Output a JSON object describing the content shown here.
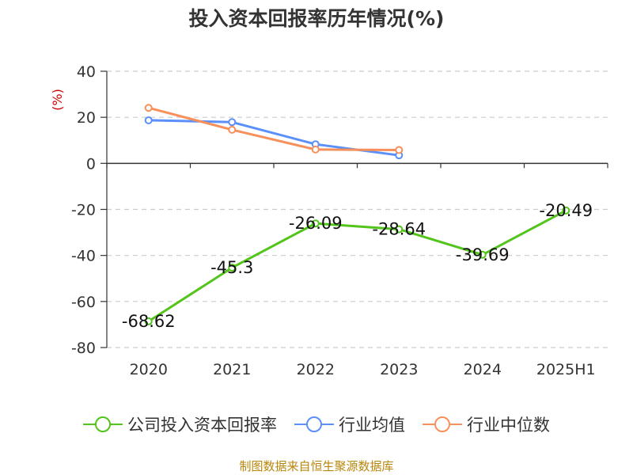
{
  "chart_data": {
    "type": "line",
    "title": "投入资本回报率历年情况(%)",
    "ylabel": "(%)",
    "categories": [
      "2020",
      "2021",
      "2022",
      "2023",
      "2024",
      "2025H1"
    ],
    "ylim": [
      -80,
      40
    ],
    "yticks": [
      40,
      20,
      0,
      -20,
      -40,
      -60,
      -80
    ],
    "grid": true,
    "legend_position": "bottom",
    "series": [
      {
        "name": "公司投入资本回报率",
        "color": "#52c41a",
        "values": [
          -68.62,
          -45.3,
          -26.09,
          -28.64,
          -39.69,
          -20.49
        ],
        "labels": [
          "-68.62",
          "-45.3",
          "-26.09",
          "-28.64",
          "-39.69",
          "-20.49"
        ]
      },
      {
        "name": "行业均值",
        "color": "#5b8ff9",
        "values": [
          18.7,
          17.9,
          8.3,
          3.5,
          null,
          null
        ]
      },
      {
        "name": "行业中位数",
        "color": "#f7905a",
        "values": [
          24.1,
          14.6,
          6.0,
          5.8,
          null,
          null
        ]
      }
    ]
  },
  "footer": {
    "source": "制图数据来自恒生聚源数据库"
  }
}
